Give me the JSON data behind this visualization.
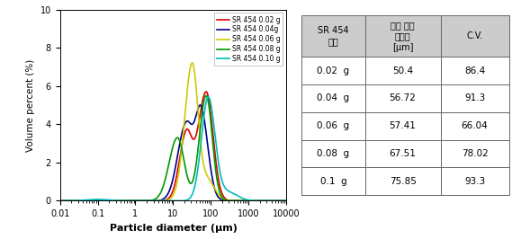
{
  "legend_labels": [
    "SR 454 0.02 g",
    "SR 454 0.04g",
    "SR 454 0.06 g",
    "SR 454 0.08 g",
    "SR 454 0.10 g"
  ],
  "line_colors": [
    "#dd0000",
    "#00008b",
    "#cccc00",
    "#009900",
    "#00bbbb"
  ],
  "xlabel": "Particle diameter (μm)",
  "ylabel": "Volume percent (%)",
  "ylim": [
    0,
    10
  ],
  "yticks": [
    0,
    2,
    4,
    6,
    8,
    10
  ],
  "table_header_col1": "SR 454\n함량",
  "table_header_col2": "평균 입자\n사이즈\n[μm]",
  "table_header_col3": "C.V.",
  "table_rows": [
    [
      "0.02  g",
      "50.4",
      "86.4"
    ],
    [
      "0.04  g",
      "56.72",
      "91.3"
    ],
    [
      "0.06  g",
      "57.41",
      "66.04"
    ],
    [
      "0.08  g",
      "67.51",
      "78.02"
    ],
    [
      "0.1  g",
      "75.85",
      "93.3"
    ]
  ],
  "background_color": "#ffffff",
  "header_bg": "#cccccc"
}
